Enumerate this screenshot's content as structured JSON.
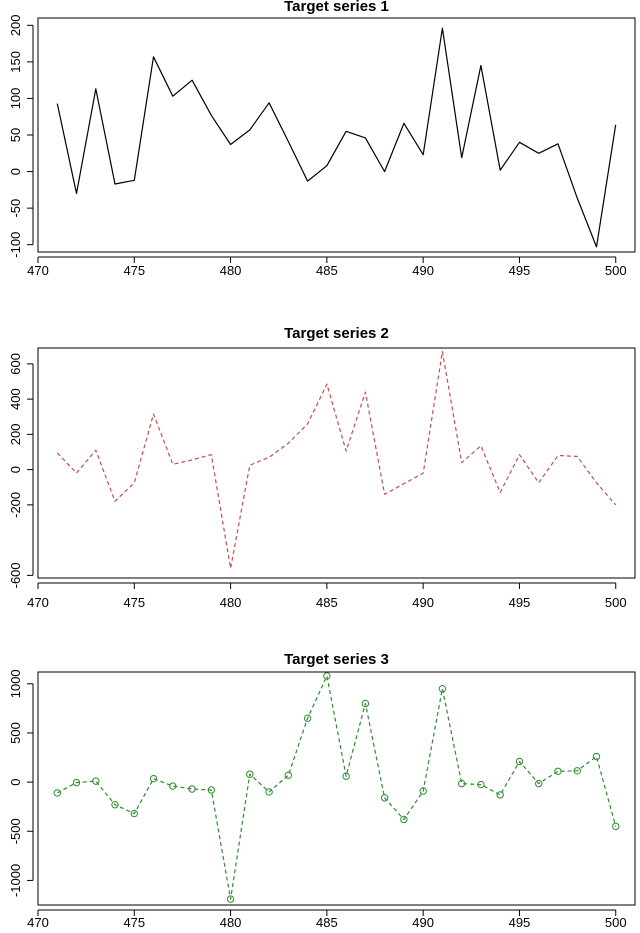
{
  "chart_data": [
    {
      "type": "line",
      "title": "Target series 1",
      "xlabel": "",
      "ylabel": "",
      "xlim": [
        470,
        501
      ],
      "ylim": [
        -110,
        210
      ],
      "x_ticks": [
        470,
        475,
        480,
        485,
        490,
        495,
        500
      ],
      "y_ticks": [
        -100,
        -50,
        0,
        50,
        100,
        150,
        200
      ],
      "grid": false,
      "series": [
        {
          "color": "#000000",
          "line_style": "solid",
          "markers": false,
          "x": [
            471,
            472,
            473,
            474,
            475,
            476,
            477,
            478,
            479,
            480,
            481,
            482,
            483,
            484,
            485,
            486,
            487,
            488,
            489,
            490,
            491,
            492,
            493,
            494,
            495,
            496,
            497,
            498,
            499,
            500
          ],
          "y": [
            93,
            -30,
            113,
            -17,
            -12,
            157,
            103,
            125,
            77,
            37,
            57,
            94,
            41,
            -13,
            8,
            55,
            46,
            0,
            66,
            23,
            196,
            19,
            145,
            2,
            40,
            25,
            38,
            -36,
            -103,
            64
          ]
        }
      ]
    },
    {
      "type": "line",
      "title": "Target series 2",
      "xlabel": "",
      "ylabel": "",
      "xlim": [
        470,
        501
      ],
      "ylim": [
        -615,
        690
      ],
      "x_ticks": [
        470,
        475,
        480,
        485,
        490,
        495,
        500
      ],
      "y_ticks": [
        -600,
        -200,
        0,
        200,
        400,
        600
      ],
      "grid": false,
      "series": [
        {
          "color": "#c0504d",
          "line_style": "dashed",
          "markers": false,
          "x": [
            471,
            472,
            473,
            474,
            475,
            476,
            477,
            478,
            479,
            480,
            481,
            482,
            483,
            484,
            485,
            486,
            487,
            488,
            489,
            490,
            491,
            492,
            493,
            494,
            495,
            496,
            497,
            498,
            499,
            500
          ],
          "y": [
            95,
            -20,
            110,
            -180,
            -75,
            315,
            30,
            55,
            85,
            -560,
            25,
            70,
            150,
            260,
            485,
            105,
            440,
            -140,
            -80,
            -20,
            670,
            40,
            135,
            -130,
            85,
            -75,
            80,
            75,
            -75,
            -200
          ]
        }
      ]
    },
    {
      "type": "line",
      "title": "Target series 3",
      "xlabel": "",
      "ylabel": "",
      "xlim": [
        470,
        501
      ],
      "ylim": [
        -1250,
        1120
      ],
      "x_ticks": [
        470,
        475,
        480,
        485,
        490,
        495,
        500
      ],
      "y_ticks": [
        -1000,
        -500,
        0,
        500,
        1000
      ],
      "grid": false,
      "series": [
        {
          "color": "#2e8b2e",
          "line_style": "dashed",
          "markers": true,
          "x": [
            471,
            472,
            473,
            474,
            475,
            476,
            477,
            478,
            479,
            480,
            481,
            482,
            483,
            484,
            485,
            486,
            487,
            488,
            489,
            490,
            491,
            492,
            493,
            494,
            495,
            496,
            497,
            498,
            499,
            500
          ],
          "y": [
            -110,
            -5,
            10,
            -230,
            -320,
            35,
            -40,
            -70,
            -80,
            -1190,
            80,
            -100,
            70,
            650,
            1080,
            60,
            800,
            -160,
            -380,
            -90,
            950,
            -15,
            -25,
            -130,
            210,
            -15,
            110,
            115,
            260,
            -450
          ]
        }
      ]
    }
  ]
}
